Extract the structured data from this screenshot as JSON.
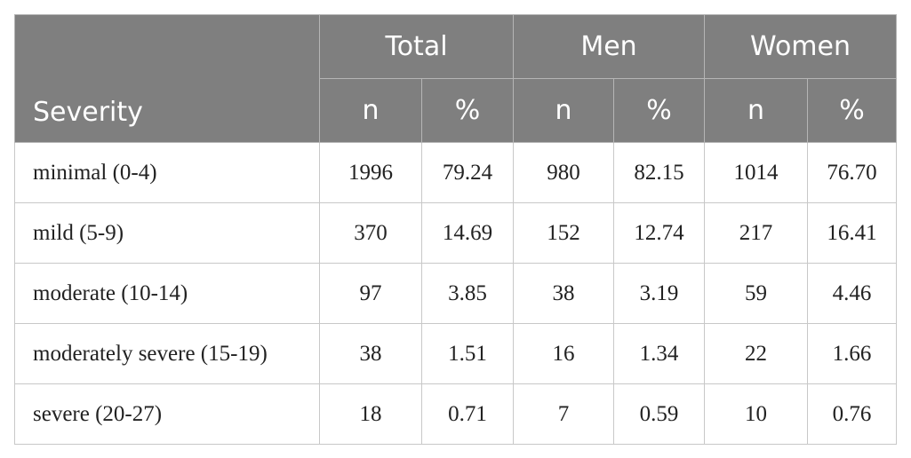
{
  "table": {
    "header": {
      "severity": "Severity",
      "groups": [
        "Total",
        "Men",
        "Women"
      ],
      "sub": [
        "n",
        "%",
        "n",
        "%",
        "n",
        "%"
      ]
    },
    "rows": [
      [
        "minimal (0-4)",
        "1996",
        "79.24",
        "980",
        "82.15",
        "1014",
        "76.70"
      ],
      [
        "mild (5-9)",
        "370",
        "14.69",
        "152",
        "12.74",
        "217",
        "16.41"
      ],
      [
        "moderate (10-14)",
        "97",
        "3.85",
        "38",
        "3.19",
        "59",
        "4.46"
      ],
      [
        "moderately severe (15-19)",
        "38",
        "1.51",
        "16",
        "1.34",
        "22",
        "1.66"
      ],
      [
        "severe (20-27)",
        "18",
        "0.71",
        "7",
        "0.59",
        "10",
        "0.76"
      ]
    ]
  }
}
